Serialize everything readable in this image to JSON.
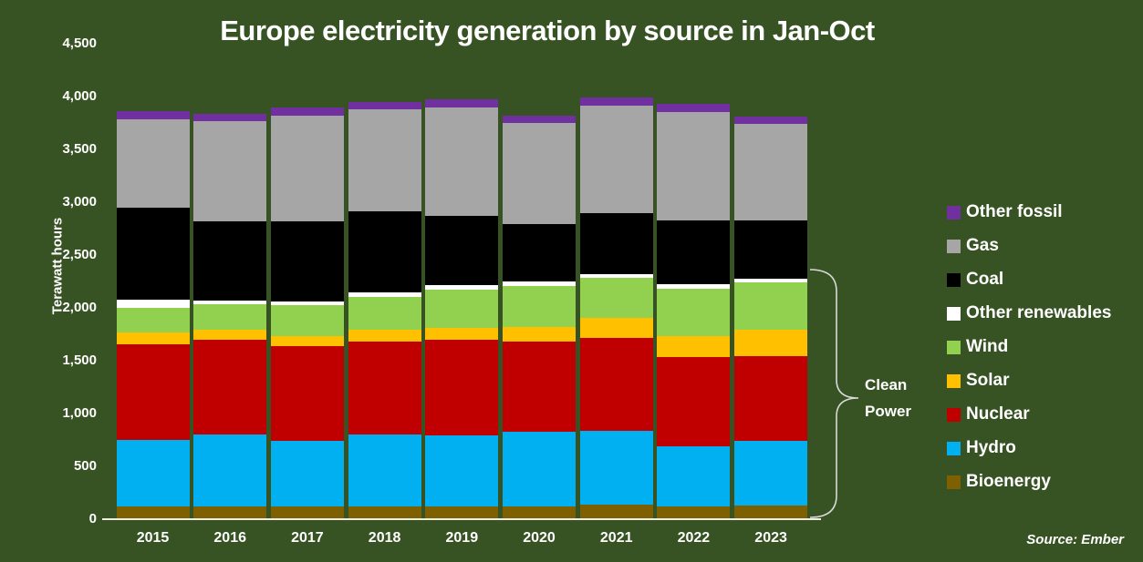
{
  "title": "Europe electricity generation by source in Jan-Oct",
  "source_note": "Source: Ember",
  "clean_power_label": {
    "line1": "Clean",
    "line2": "Power"
  },
  "y_axis": {
    "title": "Terawatt hours",
    "ticks": [
      {
        "label": "4,500",
        "value": 4500
      },
      {
        "label": "4,000",
        "value": 4000
      },
      {
        "label": "3,500",
        "value": 3500
      },
      {
        "label": "3,000",
        "value": 3000
      },
      {
        "label": "2,500",
        "value": 2500
      },
      {
        "label": "2,000",
        "value": 2000
      },
      {
        "label": "1,500",
        "value": 1500
      },
      {
        "label": "1,000",
        "value": 1000
      },
      {
        "label": "500",
        "value": 500
      },
      {
        "label": "0",
        "value": 0
      }
    ]
  },
  "chart_data": {
    "type": "bar",
    "stacked": true,
    "title": "Europe electricity generation by source in Jan-Oct",
    "xlabel": "",
    "ylabel": "Terawatt hours",
    "units": "TWh",
    "ylim": [
      0,
      4570
    ],
    "grid": false,
    "legend_position": "right",
    "categories": [
      "2015",
      "2016",
      "2017",
      "2018",
      "2019",
      "2020",
      "2021",
      "2022",
      "2023"
    ],
    "series": [
      {
        "name": "Bioenergy",
        "color": "#7f6000",
        "values": [
          110,
          115,
          110,
          115,
          110,
          115,
          125,
          110,
          120
        ]
      },
      {
        "name": "Hydro",
        "color": "#00b0f0",
        "values": [
          630,
          675,
          620,
          680,
          675,
          705,
          700,
          570,
          612
        ]
      },
      {
        "name": "Nuclear",
        "color": "#c00000",
        "values": [
          910,
          895,
          900,
          875,
          900,
          855,
          885,
          845,
          805
        ]
      },
      {
        "name": "Solar",
        "color": "#ffc000",
        "values": [
          110,
          95,
          95,
          112,
          115,
          135,
          185,
          200,
          250
        ]
      },
      {
        "name": "Wind",
        "color": "#92d050",
        "values": [
          235,
          245,
          295,
          315,
          360,
          390,
          380,
          450,
          448
        ]
      },
      {
        "name": "Other renewables",
        "color": "#ffffff",
        "values": [
          70,
          35,
          32,
          44,
          46,
          43,
          37,
          40,
          35
        ]
      },
      {
        "name": "Coal",
        "color": "#000000",
        "values": [
          875,
          750,
          755,
          760,
          655,
          545,
          575,
          600,
          545
        ]
      },
      {
        "name": "Gas",
        "color": "#a6a6a6",
        "values": [
          835,
          945,
          1005,
          970,
          1025,
          950,
          1020,
          1030,
          915
        ]
      },
      {
        "name": "Other fossil",
        "color": "#7030a0",
        "values": [
          78,
          72,
          80,
          72,
          78,
          72,
          80,
          78,
          69
        ]
      }
    ],
    "annotation": "Clean Power bracket spans Bioenergy through Other renewables"
  },
  "legend": [
    {
      "label": "Other fossil",
      "color": "#7030a0"
    },
    {
      "label": "Gas",
      "color": "#a6a6a6"
    },
    {
      "label": "Coal",
      "color": "#000000"
    },
    {
      "label": "Other renewables",
      "color": "#ffffff"
    },
    {
      "label": "Wind",
      "color": "#92d050"
    },
    {
      "label": "Solar",
      "color": "#ffc000"
    },
    {
      "label": "Nuclear",
      "color": "#c00000"
    },
    {
      "label": "Hydro",
      "color": "#00b0f0"
    },
    {
      "label": "Bioenergy",
      "color": "#7f6000"
    }
  ]
}
